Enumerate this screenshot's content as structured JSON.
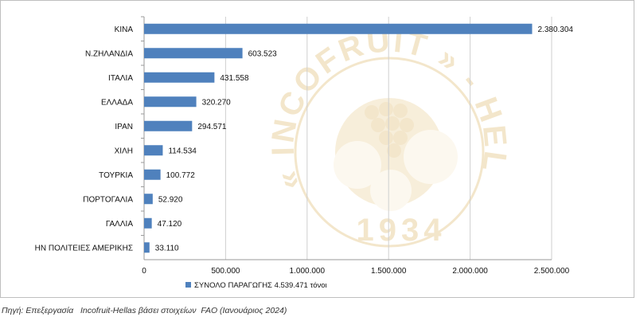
{
  "chart_data": {
    "type": "bar",
    "orientation": "horizontal",
    "categories": [
      "ΚΙΝΑ",
      "Ν.ΖΗΛΑΝΔΙΑ",
      "ΙΤΑΛΙΑ",
      "ΕΛΛΑΔΑ",
      "ΙΡΑΝ",
      "ΧΙΛΗ",
      "ΤΟΥΡΚΙΑ",
      "ΠΟΡΤΟΓΑΛΙΑ",
      "ΓΑΛΛΙΑ",
      "ΗΝ ΠΟΛΙΤΕΙΕΣ ΑΜΕΡΙΚΗΣ"
    ],
    "values": [
      2380304,
      603523,
      431558,
      320270,
      294571,
      114534,
      100772,
      52920,
      47120,
      33110
    ],
    "value_labels": [
      "2.380.304",
      "603.523",
      "431.558",
      "320.270",
      "294.571",
      "114.534",
      "100.772",
      "52.920",
      "47.120",
      "33.110"
    ],
    "xlim": [
      0,
      2500000
    ],
    "xticks": [
      0,
      500000,
      1000000,
      1500000,
      2000000,
      2500000
    ],
    "xtick_labels": [
      "0",
      "500.000",
      "1.000.000",
      "1.500.000",
      "2.000.000",
      "2.500.000"
    ],
    "grid": true,
    "legend": {
      "label": "ΣΥΝΟΛΟ ΠΑΡΑΓΩΓΗΣ 4.539.471 τόνοι",
      "placement": "bottom"
    },
    "bar_color": "#4F81BD",
    "title": "",
    "xlabel": "",
    "ylabel": ""
  },
  "watermark": {
    "text": "« INCOFRUIT » - HELLAS",
    "year": "1934",
    "color": "#E8CF96"
  },
  "source": "Πηγή: Επεξεργασία   Incofruit-Hellas βάσει στοιχείων  FAO (Ιανουάριος 2024)"
}
